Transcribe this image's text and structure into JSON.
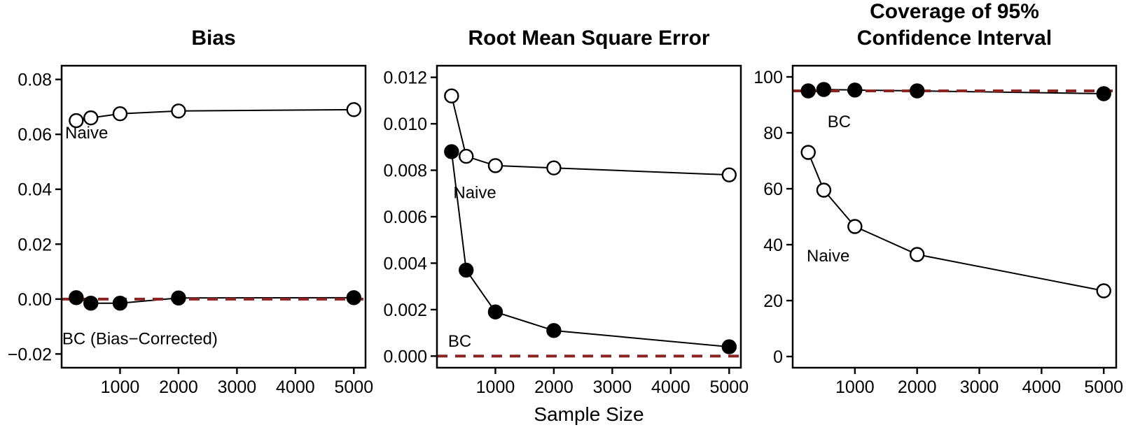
{
  "figure": {
    "xlabel": "Sample Size",
    "background": "#ffffff",
    "axis_color": "#000000",
    "series_line_color": "#000000",
    "ref_line_color": "#8b2323",
    "open_marker_fill": "#ffffff",
    "filled_marker_fill": "#000000"
  },
  "chart_data": [
    {
      "type": "line",
      "title_lines": [
        "Bias"
      ],
      "x": [
        250,
        500,
        1000,
        2000,
        5000
      ],
      "xlim": [
        0,
        5200
      ],
      "xticks": [
        1000,
        2000,
        3000,
        4000,
        5000
      ],
      "xtick_labels": [
        "1000",
        "2000",
        "3000",
        "4000",
        "5000"
      ],
      "ylim": [
        -0.025,
        0.085
      ],
      "yticks": [
        -0.02,
        0,
        0.02,
        0.04,
        0.06,
        0.08
      ],
      "ytick_labels": [
        "−0.02",
        "0.00",
        "0.02",
        "0.04",
        "0.06",
        "0.08"
      ],
      "grid": false,
      "ref_line_y": 0,
      "series": [
        {
          "name": "Naive",
          "marker": "open",
          "values": [
            0.065,
            0.066,
            0.0675,
            0.0685,
            0.069
          ]
        },
        {
          "name": "BC",
          "marker": "filled",
          "values": [
            0.0005,
            -0.0015,
            -0.0015,
            0.0004,
            0.0005
          ]
        }
      ],
      "annotations": [
        {
          "text": "Naive",
          "x": 60,
          "y": 0.0585
        },
        {
          "text": "BC (Bias−Corrected)",
          "x": 10,
          "y": -0.0165
        }
      ]
    },
    {
      "type": "line",
      "title_lines": [
        "Root Mean Square Error"
      ],
      "xlabel": "Sample Size",
      "x": [
        250,
        500,
        1000,
        2000,
        5000
      ],
      "xlim": [
        0,
        5200
      ],
      "xticks": [
        1000,
        2000,
        3000,
        4000,
        5000
      ],
      "xtick_labels": [
        "1000",
        "2000",
        "3000",
        "4000",
        "5000"
      ],
      "ylim": [
        -0.0005,
        0.0125
      ],
      "yticks": [
        0,
        0.002,
        0.004,
        0.006,
        0.008,
        0.01,
        0.012
      ],
      "ytick_labels": [
        "0.000",
        "0.002",
        "0.004",
        "0.006",
        "0.008",
        "0.010",
        "0.012"
      ],
      "grid": false,
      "ref_line_y": 0,
      "series": [
        {
          "name": "Naive",
          "marker": "open",
          "values": [
            0.0112,
            0.0086,
            0.0082,
            0.0081,
            0.0078
          ]
        },
        {
          "name": "BC",
          "marker": "filled",
          "values": [
            0.0088,
            0.0037,
            0.0019,
            0.0011,
            0.0004
          ]
        }
      ],
      "annotations": [
        {
          "text": "Naive",
          "x": 280,
          "y": 0.0068
        },
        {
          "text": "BC",
          "x": 190,
          "y": 0.0004
        }
      ]
    },
    {
      "type": "line",
      "title_lines": [
        "Coverage of 95%",
        "Confidence Interval"
      ],
      "x": [
        250,
        500,
        1000,
        2000,
        5000
      ],
      "xlim": [
        0,
        5200
      ],
      "xticks": [
        1000,
        2000,
        3000,
        4000,
        5000
      ],
      "xtick_labels": [
        "1000",
        "2000",
        "3000",
        "4000",
        "5000"
      ],
      "ylim": [
        -4,
        104
      ],
      "yticks": [
        0,
        20,
        40,
        60,
        80,
        100
      ],
      "ytick_labels": [
        "0",
        "20",
        "40",
        "60",
        "80",
        "100"
      ],
      "grid": false,
      "ref_line_y": 95,
      "series": [
        {
          "name": "BC",
          "marker": "filled",
          "values": [
            95,
            95.5,
            95.3,
            95,
            94
          ]
        },
        {
          "name": "Naive",
          "marker": "open",
          "values": [
            73,
            59.5,
            46.5,
            36.5,
            23.5
          ]
        }
      ],
      "annotations": [
        {
          "text": "BC",
          "x": 560,
          "y": 82
        },
        {
          "text": "Naive",
          "x": 225,
          "y": 34
        }
      ]
    }
  ]
}
